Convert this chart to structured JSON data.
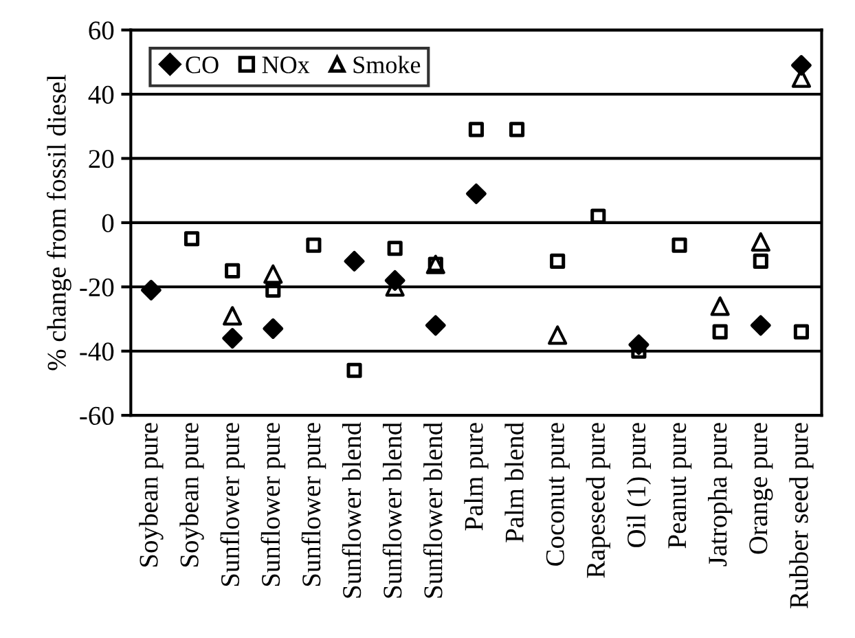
{
  "chart_data": {
    "type": "scatter",
    "ylabel": "% change from fossil diesel",
    "categories": [
      "Soybean pure",
      "Soybean pure",
      "Sunflower pure",
      "Sunflower pure",
      "Sunflower pure",
      "Sunflower blend",
      "Sunflower blend",
      "Sunflower blend",
      "Palm pure",
      "Palm blend",
      "Coconut pure",
      "Rapeseed pure",
      "Oil (1) pure",
      "Peanut pure",
      "Jatropha pure",
      "Orange pure",
      "Rubber seed pure"
    ],
    "series": [
      {
        "name": "CO",
        "color": "#000000",
        "marker": "diamond",
        "values": [
          -21,
          null,
          -36,
          -33,
          null,
          -12,
          -18,
          -32,
          9,
          null,
          null,
          null,
          -38,
          null,
          null,
          -32,
          49
        ]
      },
      {
        "name": "NOx",
        "color": "#000000",
        "marker": "square",
        "values": [
          null,
          -5,
          -15,
          -21,
          -7,
          -46,
          -8,
          -13,
          29,
          29,
          -12,
          2,
          -40,
          -7,
          -34,
          -12,
          -34
        ]
      },
      {
        "name": "Smoke",
        "color": "#000000",
        "marker": "triangle",
        "values": [
          null,
          null,
          -29,
          -16,
          null,
          null,
          -20,
          -13,
          null,
          null,
          -35,
          null,
          null,
          null,
          -26,
          -6,
          45
        ]
      }
    ],
    "ylim": [
      -60,
      60
    ],
    "yticks": [
      -60,
      -40,
      -20,
      0,
      20,
      40,
      60
    ],
    "grid": "y",
    "legend": "top left"
  }
}
